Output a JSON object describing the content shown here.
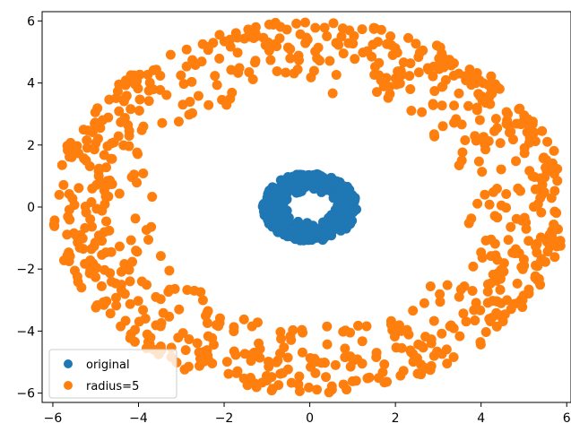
{
  "chart_data": {
    "type": "scatter",
    "title": "",
    "xlabel": "",
    "ylabel": "",
    "xlim": [
      -6.25,
      6.1
    ],
    "ylim": [
      -6.3,
      6.3
    ],
    "xticks": [
      -6,
      -4,
      -2,
      0,
      2,
      4,
      6
    ],
    "yticks": [
      -6,
      -4,
      -2,
      0,
      2,
      4,
      6
    ],
    "x_tick_labels": [
      "−6",
      "−4",
      "−2",
      "0",
      "2",
      "4",
      "6"
    ],
    "y_tick_labels": [
      "−6",
      "−4",
      "−2",
      "0",
      "2",
      "4",
      "6"
    ],
    "grid": false,
    "legend_position": "lower-left",
    "series": [
      {
        "name": "original",
        "color": "#1f77b4",
        "description_ring": "annulus centered at origin, inner radius 0.5, outer radius 1.1",
        "radius_range": [
          0.5,
          1.1
        ],
        "point_count": 400
      },
      {
        "name": "radius=5",
        "color": "#ff7f0e",
        "description_ring": "annulus centered at origin, inner radius 3.6, outer radius 6.0",
        "radius_range": [
          3.6,
          6.0
        ],
        "point_count": 800
      }
    ]
  }
}
